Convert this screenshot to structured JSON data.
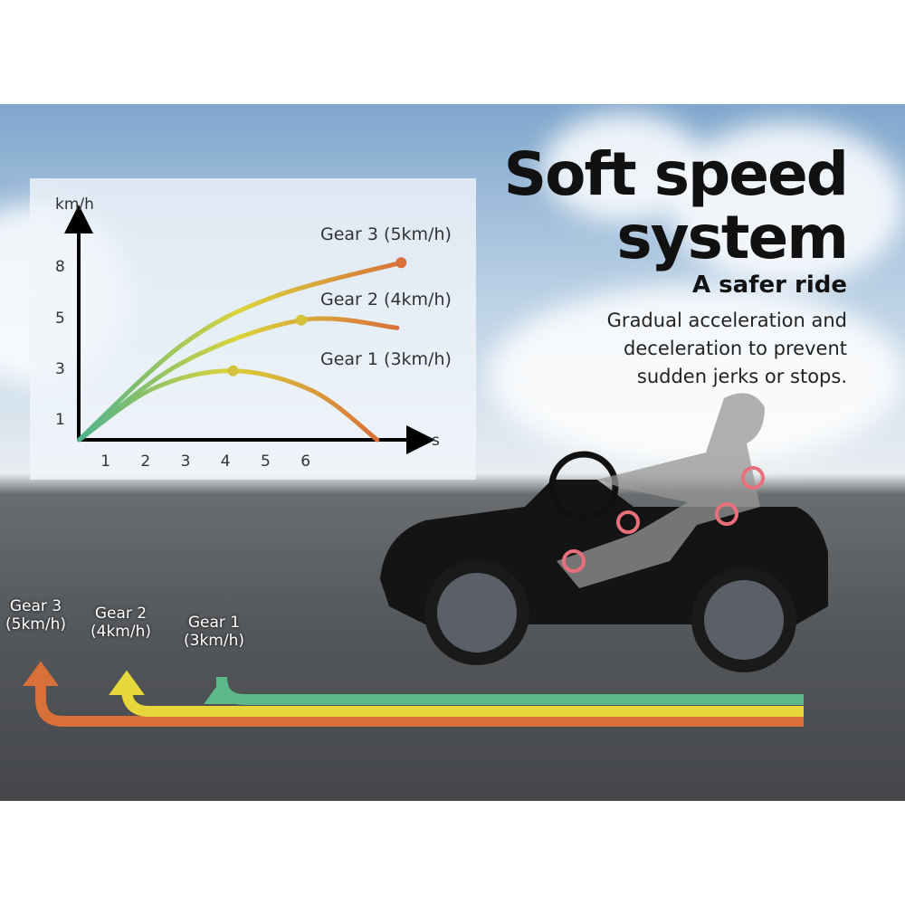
{
  "headline": {
    "line1": "Soft speed",
    "line2": "system"
  },
  "subheadline": "A safer ride",
  "description": [
    "Gradual acceleration and",
    "deceleration to prevent",
    "sudden jerks or stops."
  ],
  "chart_data": {
    "type": "line",
    "xlabel": "s",
    "ylabel": "km/h",
    "x_ticks": [
      "1",
      "2",
      "3",
      "4",
      "5",
      "6"
    ],
    "y_ticks": [
      "1",
      "3",
      "5",
      "8"
    ],
    "grid": false,
    "series": [
      {
        "name": "Gear 1  (3km/h)",
        "points": [
          [
            0.35,
            0
          ],
          [
            2.2,
            2.2
          ],
          [
            4.2,
            2.9
          ],
          [
            6.2,
            2.1
          ],
          [
            7.8,
            0
          ]
        ],
        "marker": [
          4.2,
          2.9
        ]
      },
      {
        "name": "Gear 2 (4km/h)",
        "points": [
          [
            0.35,
            0
          ],
          [
            2.9,
            3.2
          ],
          [
            5.9,
            4.9
          ],
          [
            8.3,
            4.6
          ]
        ],
        "marker": [
          5.9,
          4.9
        ]
      },
      {
        "name": "Gear 3 (5km/h)",
        "points": [
          [
            0.35,
            0
          ],
          [
            2.9,
            3.9
          ],
          [
            5.2,
            6.2
          ],
          [
            8.4,
            8.2
          ]
        ],
        "marker": [
          8.4,
          8.2
        ]
      }
    ],
    "gradient_colors": [
      "#4fb38c",
      "#d9d43a",
      "#d9703a"
    ]
  },
  "arrows": [
    {
      "label": "Gear 3\n(5km/h)",
      "color": "#d9703a"
    },
    {
      "label": "Gear 2\n(4km/h)",
      "color": "#e6d83a"
    },
    {
      "label": "Gear 1\n(3km/h)",
      "color": "#5cb889"
    }
  ]
}
